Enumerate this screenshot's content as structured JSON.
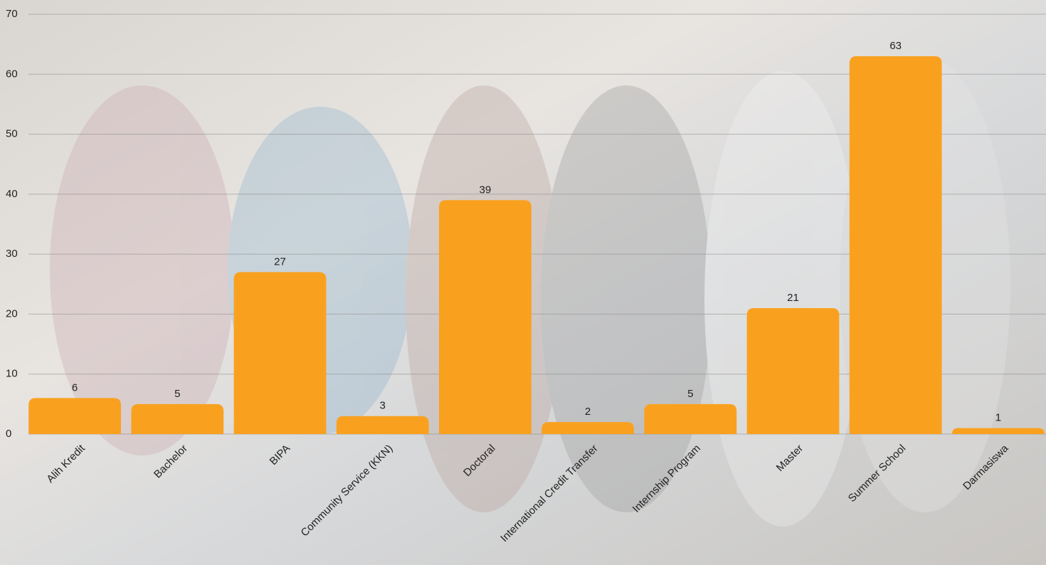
{
  "chart_data": {
    "type": "bar",
    "categories": [
      "Alih Kredit",
      "Bachelor",
      "BIPA",
      "Community Service (KKN)",
      "Doctoral",
      "International Credit Transfer",
      "Internship Program",
      "Master",
      "Summer School",
      "Darmasiswa"
    ],
    "values": [
      6,
      5,
      27,
      3,
      39,
      2,
      5,
      21,
      63,
      1
    ],
    "color": "#f9a11f",
    "ylim": [
      0,
      70
    ],
    "yticks": [
      0,
      10,
      20,
      30,
      40,
      50,
      60,
      70
    ],
    "grid": true
  }
}
